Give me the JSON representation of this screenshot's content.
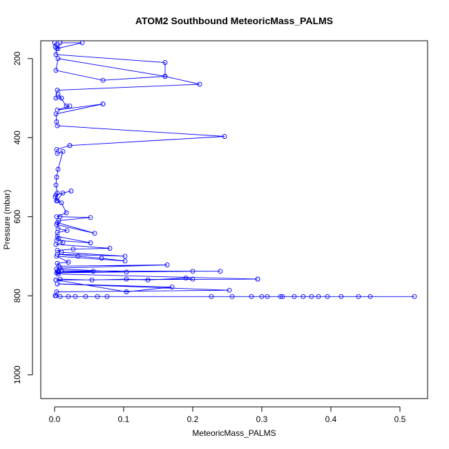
{
  "chart_data": {
    "type": "line",
    "title": "ATOM2 Southbound MeteoricMass_PALMS",
    "xlabel": "MeteoricMass_PALMS",
    "ylabel": "Pressure (mbar)",
    "xlim": [
      -0.02,
      0.54
    ],
    "ylim": [
      1060,
      155
    ],
    "y_reversed": true,
    "x_ticks": [
      0.0,
      0.1,
      0.2,
      0.3,
      0.4,
      0.5
    ],
    "x_tick_labels": [
      "0.0",
      "0.1",
      "0.2",
      "0.3",
      "0.4",
      "0.5"
    ],
    "y_ticks": [
      200,
      400,
      600,
      800,
      1000
    ],
    "y_tick_labels": [
      "200",
      "400",
      "600",
      "800",
      "1000"
    ],
    "grid": false,
    "legend": "none",
    "series": [
      {
        "color": "#0000ff",
        "marker": "open-circle",
        "x": [
          0.0,
          0.001,
          0.003,
          0.005,
          0.008,
          0.04,
          0.003,
          0.002,
          0.16,
          0.16,
          0.005,
          0.002,
          0.07,
          0.16,
          0.21,
          0.004,
          0.002,
          0.01,
          0.005,
          0.017,
          0.022,
          0.004,
          0.07,
          0.07,
          0.002,
          0.003,
          0.004,
          0.246,
          0.022,
          0.022,
          0.003,
          0.004,
          0.012,
          0.005,
          0.003,
          0.002,
          0.004,
          0.001,
          0.003,
          0.012,
          0.024,
          0.002,
          0.004,
          0.01,
          0.017,
          0.003,
          0.008,
          0.052,
          0.006,
          0.003,
          0.058,
          0.004,
          0.005,
          0.018,
          0.004,
          0.003,
          0.052,
          0.004,
          0.006,
          0.012,
          0.002,
          0.08,
          0.027,
          0.004,
          0.01,
          0.102,
          0.004,
          0.034,
          0.068,
          0.102,
          0.003,
          0.02,
          0.004,
          0.006,
          0.163,
          0.008,
          0.003,
          0.104,
          0.006,
          0.056,
          0.01,
          0.24,
          0.2,
          0.003,
          0.004,
          0.005,
          0.005,
          0.294,
          0.294,
          0.002,
          0.008,
          0.054,
          0.104,
          0.135,
          0.19,
          0.2,
          0.002,
          0.104,
          0.17,
          0.004,
          0.253,
          0.003,
          0.001,
          0.002,
          0.008,
          0.02,
          0.03,
          0.045,
          0.062,
          0.076,
          0.227,
          0.257,
          0.285,
          0.3,
          0.308,
          0.327,
          0.33,
          0.347,
          0.36,
          0.372,
          0.382,
          0.395,
          0.415,
          0.44,
          0.457,
          0.521
        ],
        "y": [
          160,
          170,
          165,
          175,
          160,
          160,
          175,
          190,
          210,
          245,
          200,
          230,
          255,
          245,
          265,
          280,
          300,
          300,
          290,
          320,
          320,
          330,
          315,
          315,
          340,
          360,
          370,
          397,
          420,
          420,
          430,
          440,
          435,
          480,
          500,
          520,
          540,
          550,
          560,
          540,
          535,
          545,
          560,
          565,
          590,
          600,
          600,
          602,
          610,
          620,
          642,
          615,
          630,
          635,
          640,
          660,
          666,
          650,
          655,
          665,
          670,
          680,
          682,
          685,
          690,
          700,
          695,
          700,
          705,
          712,
          700,
          715,
          718,
          725,
          722,
          730,
          732,
          740,
          740,
          738,
          737,
          738,
          738,
          742,
          738,
          740,
          745,
          758,
          758,
          760,
          758,
          760,
          758,
          760,
          755,
          758,
          760,
          790,
          778,
          770,
          786,
          790,
          800,
          800,
          802,
          802,
          802,
          802,
          802,
          802,
          802,
          802,
          802,
          802,
          802,
          802,
          802,
          802,
          802,
          802,
          802,
          802,
          802,
          802,
          802,
          802
        ]
      }
    ]
  }
}
